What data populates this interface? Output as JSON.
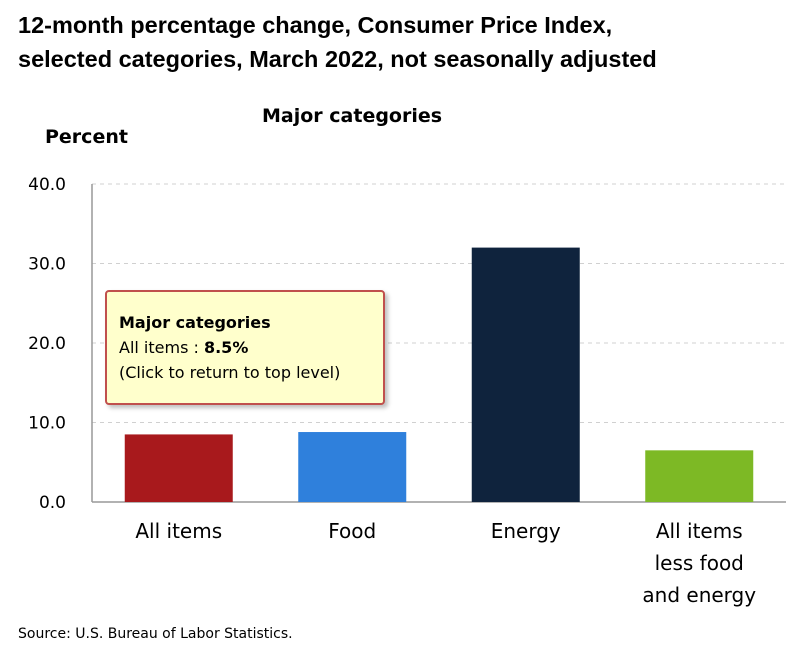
{
  "chart_data": {
    "type": "bar",
    "title_line1": "12-month percentage change, Consumer Price Index,",
    "title_line2": "selected categories, March 2022, not seasonally adjusted",
    "subtitle": "Major categories",
    "ylabel": "Percent",
    "xlabel": "",
    "ylim": [
      0,
      40
    ],
    "yticks": [
      "0.0",
      "10.0",
      "20.0",
      "30.0",
      "40.0"
    ],
    "grid": true,
    "categories": [
      [
        "All items"
      ],
      [
        "Food"
      ],
      [
        "Energy"
      ],
      [
        "All items",
        "less food",
        "and energy"
      ]
    ],
    "values": [
      8.5,
      8.8,
      32.0,
      6.5
    ],
    "colors": [
      "#a8191c",
      "#2f80dc",
      "#0f233d",
      "#7db925"
    ]
  },
  "tooltip": {
    "title": "Major categories",
    "label": "All items : ",
    "value": "8.5%",
    "hint": "(Click to return to top level)"
  },
  "source": "Source: U.S. Bureau of Labor Statistics."
}
